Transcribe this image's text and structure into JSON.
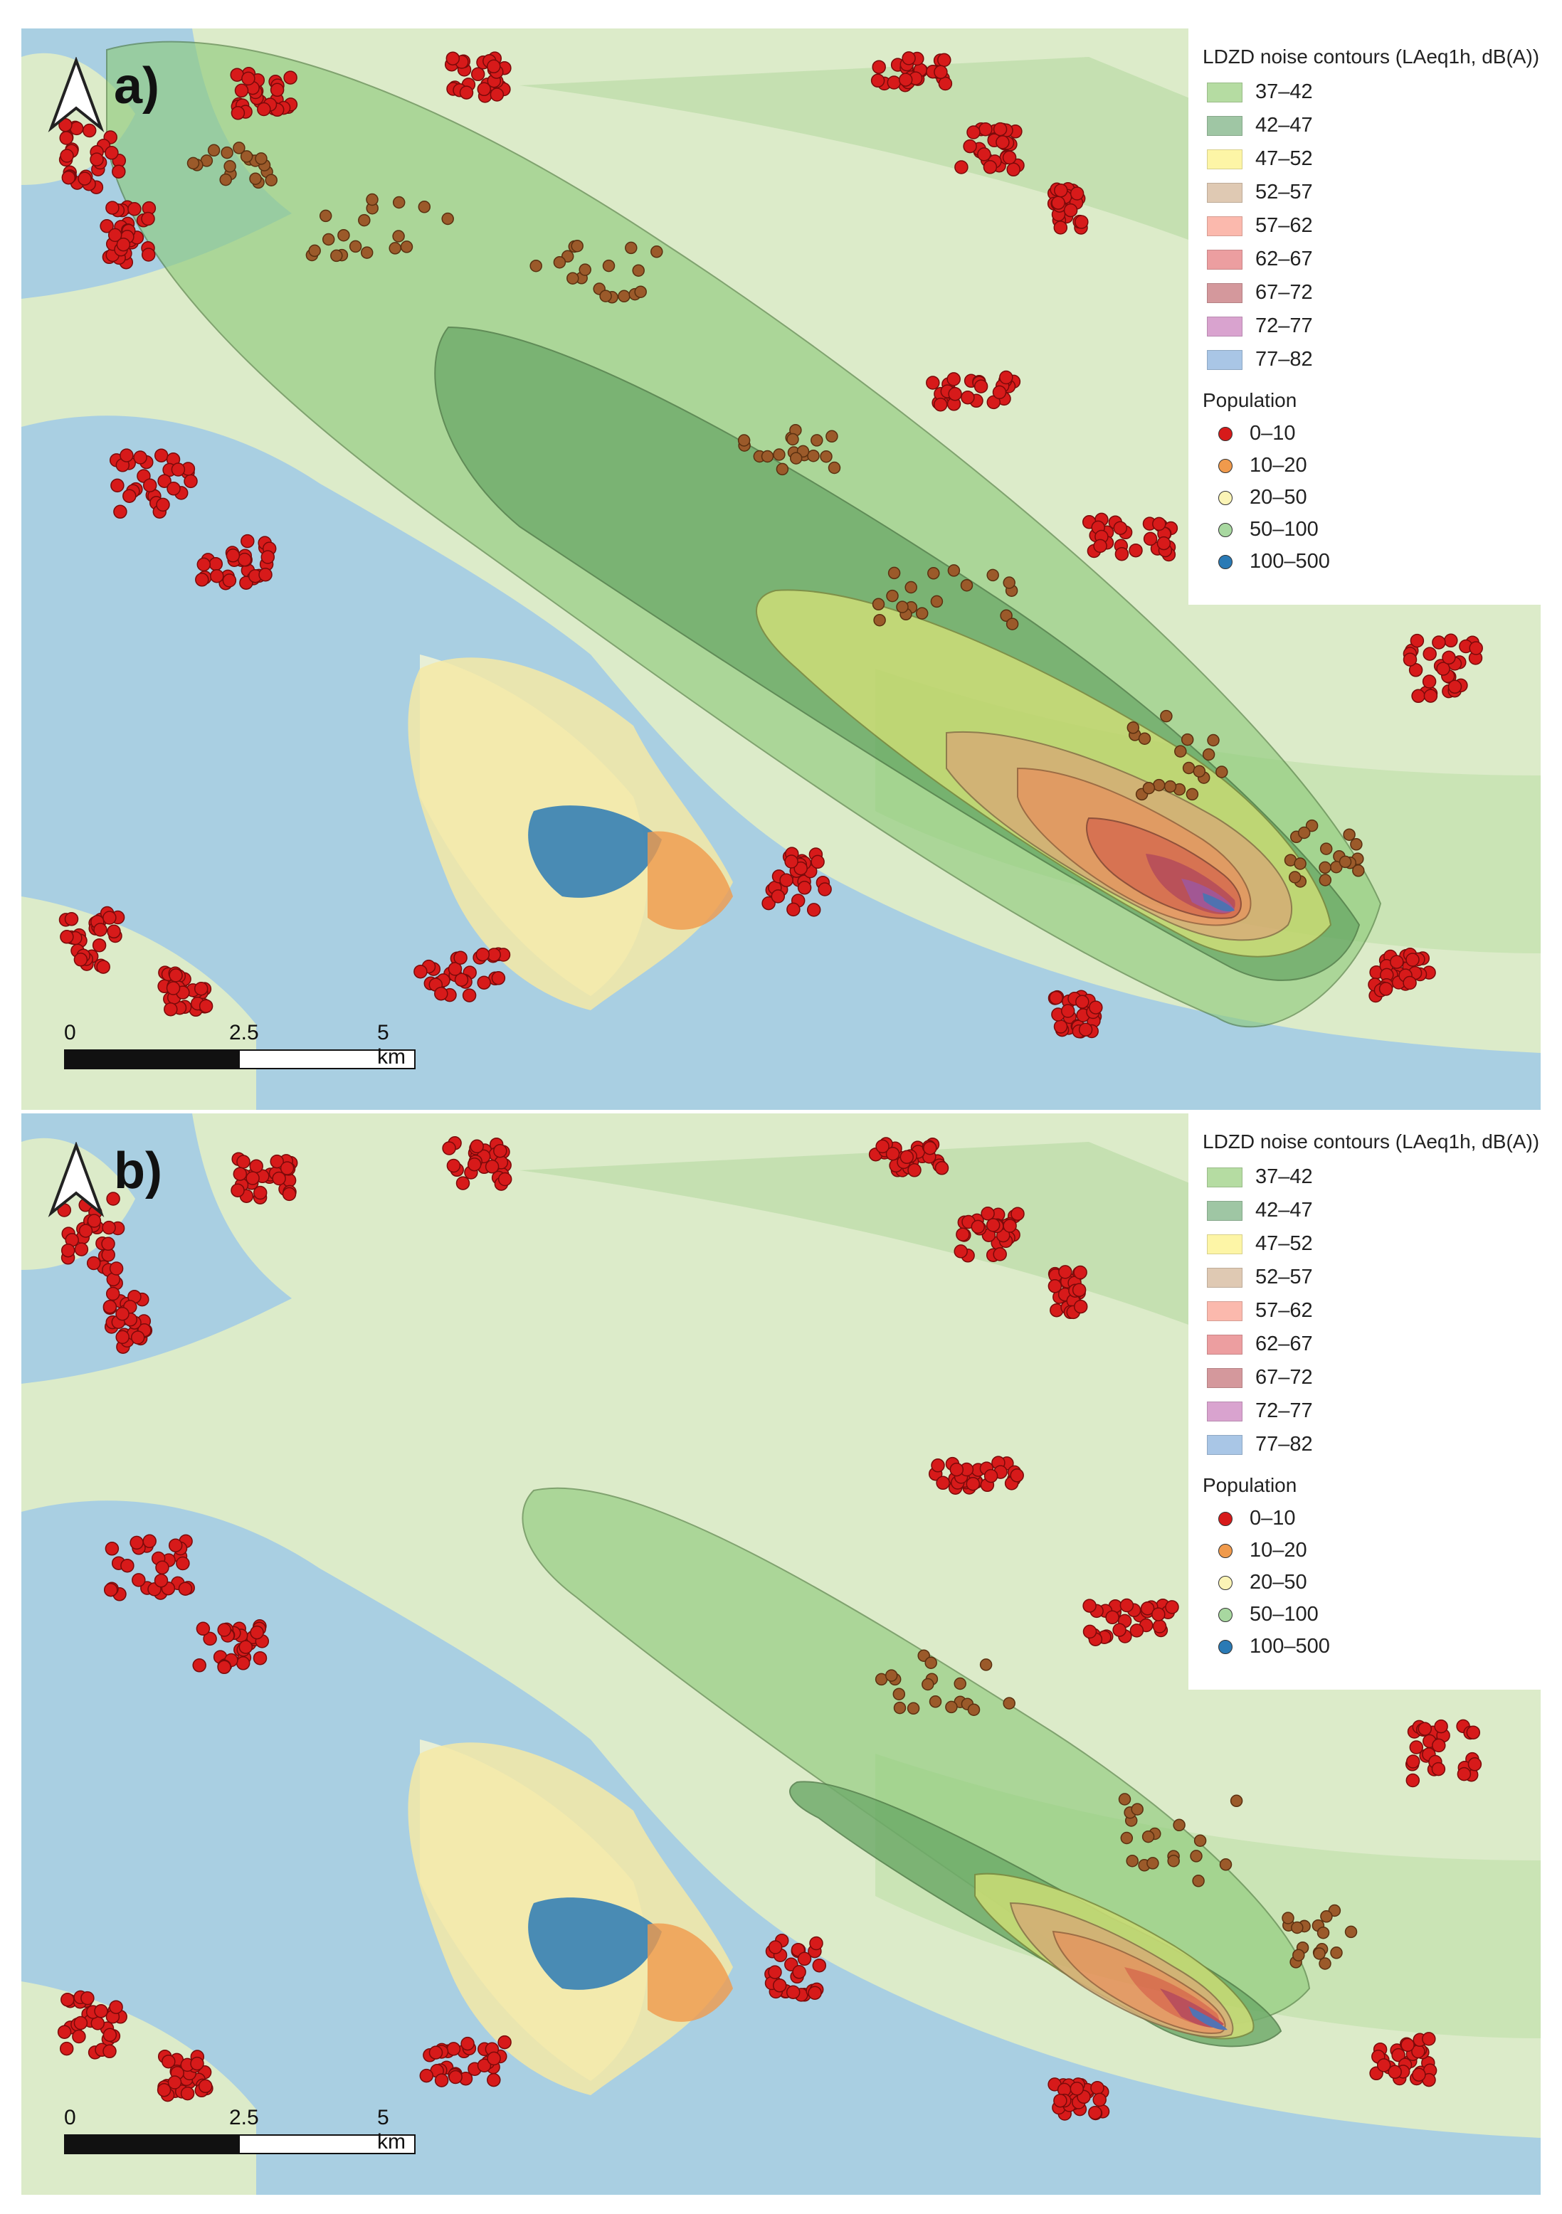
{
  "panels": [
    {
      "label": "a)",
      "legend": {
        "title": "LDZD noise contours (LAeq1h, dB(A))",
        "classes": [
          {
            "label": "37–42",
            "color": "#b5dca2"
          },
          {
            "label": "42–47",
            "color": "#9fc6a4"
          },
          {
            "label": "47–52",
            "color": "#fdf5a6"
          },
          {
            "label": "52–57",
            "color": "#dfc9b3"
          },
          {
            "label": "57–62",
            "color": "#fbb9ad"
          },
          {
            "label": "62–67",
            "color": "#ec9ea0"
          },
          {
            "label": "67–72",
            "color": "#d4989c"
          },
          {
            "label": "72–77",
            "color": "#d9a3cf"
          },
          {
            "label": "77–82",
            "color": "#a9c6e6"
          }
        ],
        "population_title": "Population",
        "population": [
          {
            "label": "0–10",
            "color": "#d71a1a"
          },
          {
            "label": "10–20",
            "color": "#f09a4c"
          },
          {
            "label": "20–50",
            "color": "#fbf4b6"
          },
          {
            "label": "50–100",
            "color": "#a8d8a0"
          },
          {
            "label": "100–500",
            "color": "#2a7ab5"
          }
        ]
      },
      "scale": {
        "l0": "0",
        "l1": "2.5",
        "l2": "5 km"
      }
    },
    {
      "label": "b)",
      "legend": {
        "title": "LDZD noise contours (LAeq1h, dB(A))",
        "classes": [
          {
            "label": "37–42",
            "color": "#b5dca2"
          },
          {
            "label": "42–47",
            "color": "#9fc6a4"
          },
          {
            "label": "47–52",
            "color": "#fdf5a6"
          },
          {
            "label": "52–57",
            "color": "#dfc9b3"
          },
          {
            "label": "57–62",
            "color": "#fbb9ad"
          },
          {
            "label": "62–67",
            "color": "#ec9ea0"
          },
          {
            "label": "67–72",
            "color": "#d4989c"
          },
          {
            "label": "72–77",
            "color": "#d9a3cf"
          },
          {
            "label": "77–82",
            "color": "#a9c6e6"
          }
        ],
        "population_title": "Population",
        "population": [
          {
            "label": "0–10",
            "color": "#d71a1a"
          },
          {
            "label": "10–20",
            "color": "#f09a4c"
          },
          {
            "label": "20–50",
            "color": "#fbf4b6"
          },
          {
            "label": "50–100",
            "color": "#a8d8a0"
          },
          {
            "label": "100–500",
            "color": "#2a7ab5"
          }
        ]
      },
      "scale": {
        "l0": "0",
        "l1": "2.5",
        "l2": "5 km"
      }
    }
  ]
}
